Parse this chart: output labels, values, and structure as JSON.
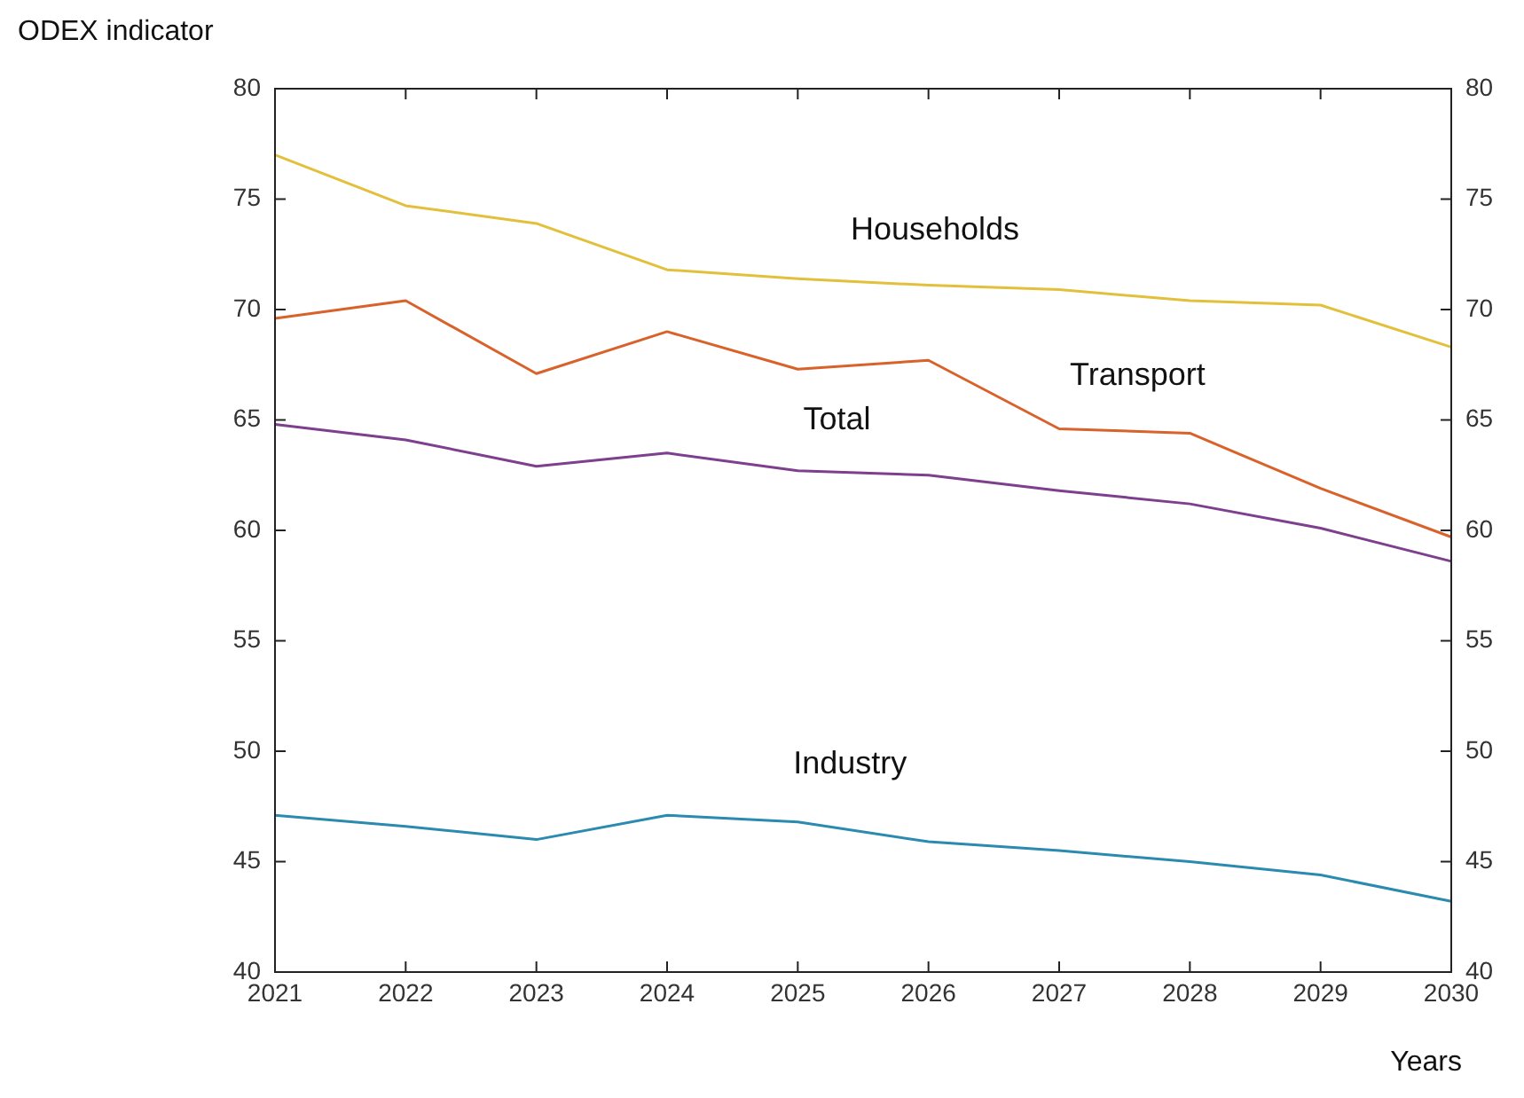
{
  "chart_data": {
    "type": "line",
    "xlabel": "Years",
    "ylabel": "ODEX indicator",
    "categories": [
      "2021",
      "2022",
      "2023",
      "2024",
      "2025",
      "2026",
      "2027",
      "2028",
      "2029",
      "2030"
    ],
    "series": [
      {
        "name": "Households",
        "color": "#e3c03c",
        "values": [
          77.0,
          74.7,
          73.9,
          71.8,
          71.4,
          71.1,
          70.9,
          70.4,
          70.2,
          68.3
        ]
      },
      {
        "name": "Transport",
        "color": "#d9622b",
        "values": [
          69.6,
          70.4,
          67.1,
          69.0,
          67.3,
          67.7,
          64.6,
          64.4,
          61.9,
          59.7
        ]
      },
      {
        "name": "Total",
        "color": "#7e3f8e",
        "values": [
          64.8,
          64.1,
          62.9,
          63.5,
          62.7,
          62.5,
          61.8,
          61.2,
          60.1,
          58.6
        ]
      },
      {
        "name": "Industry",
        "color": "#2a8ab0",
        "values": [
          47.1,
          46.6,
          46.0,
          47.1,
          46.8,
          45.9,
          45.5,
          45.0,
          44.4,
          43.2
        ]
      }
    ],
    "ylim": [
      40,
      80
    ],
    "yticks": [
      40,
      45,
      50,
      55,
      60,
      65,
      70,
      75,
      80
    ],
    "y2lim": [
      40,
      80
    ],
    "y2ticks": [
      40,
      45,
      50,
      55,
      60,
      65,
      70,
      75,
      80
    ],
    "grid": false,
    "legend": false,
    "marker": "none",
    "line_style": "solid"
  }
}
